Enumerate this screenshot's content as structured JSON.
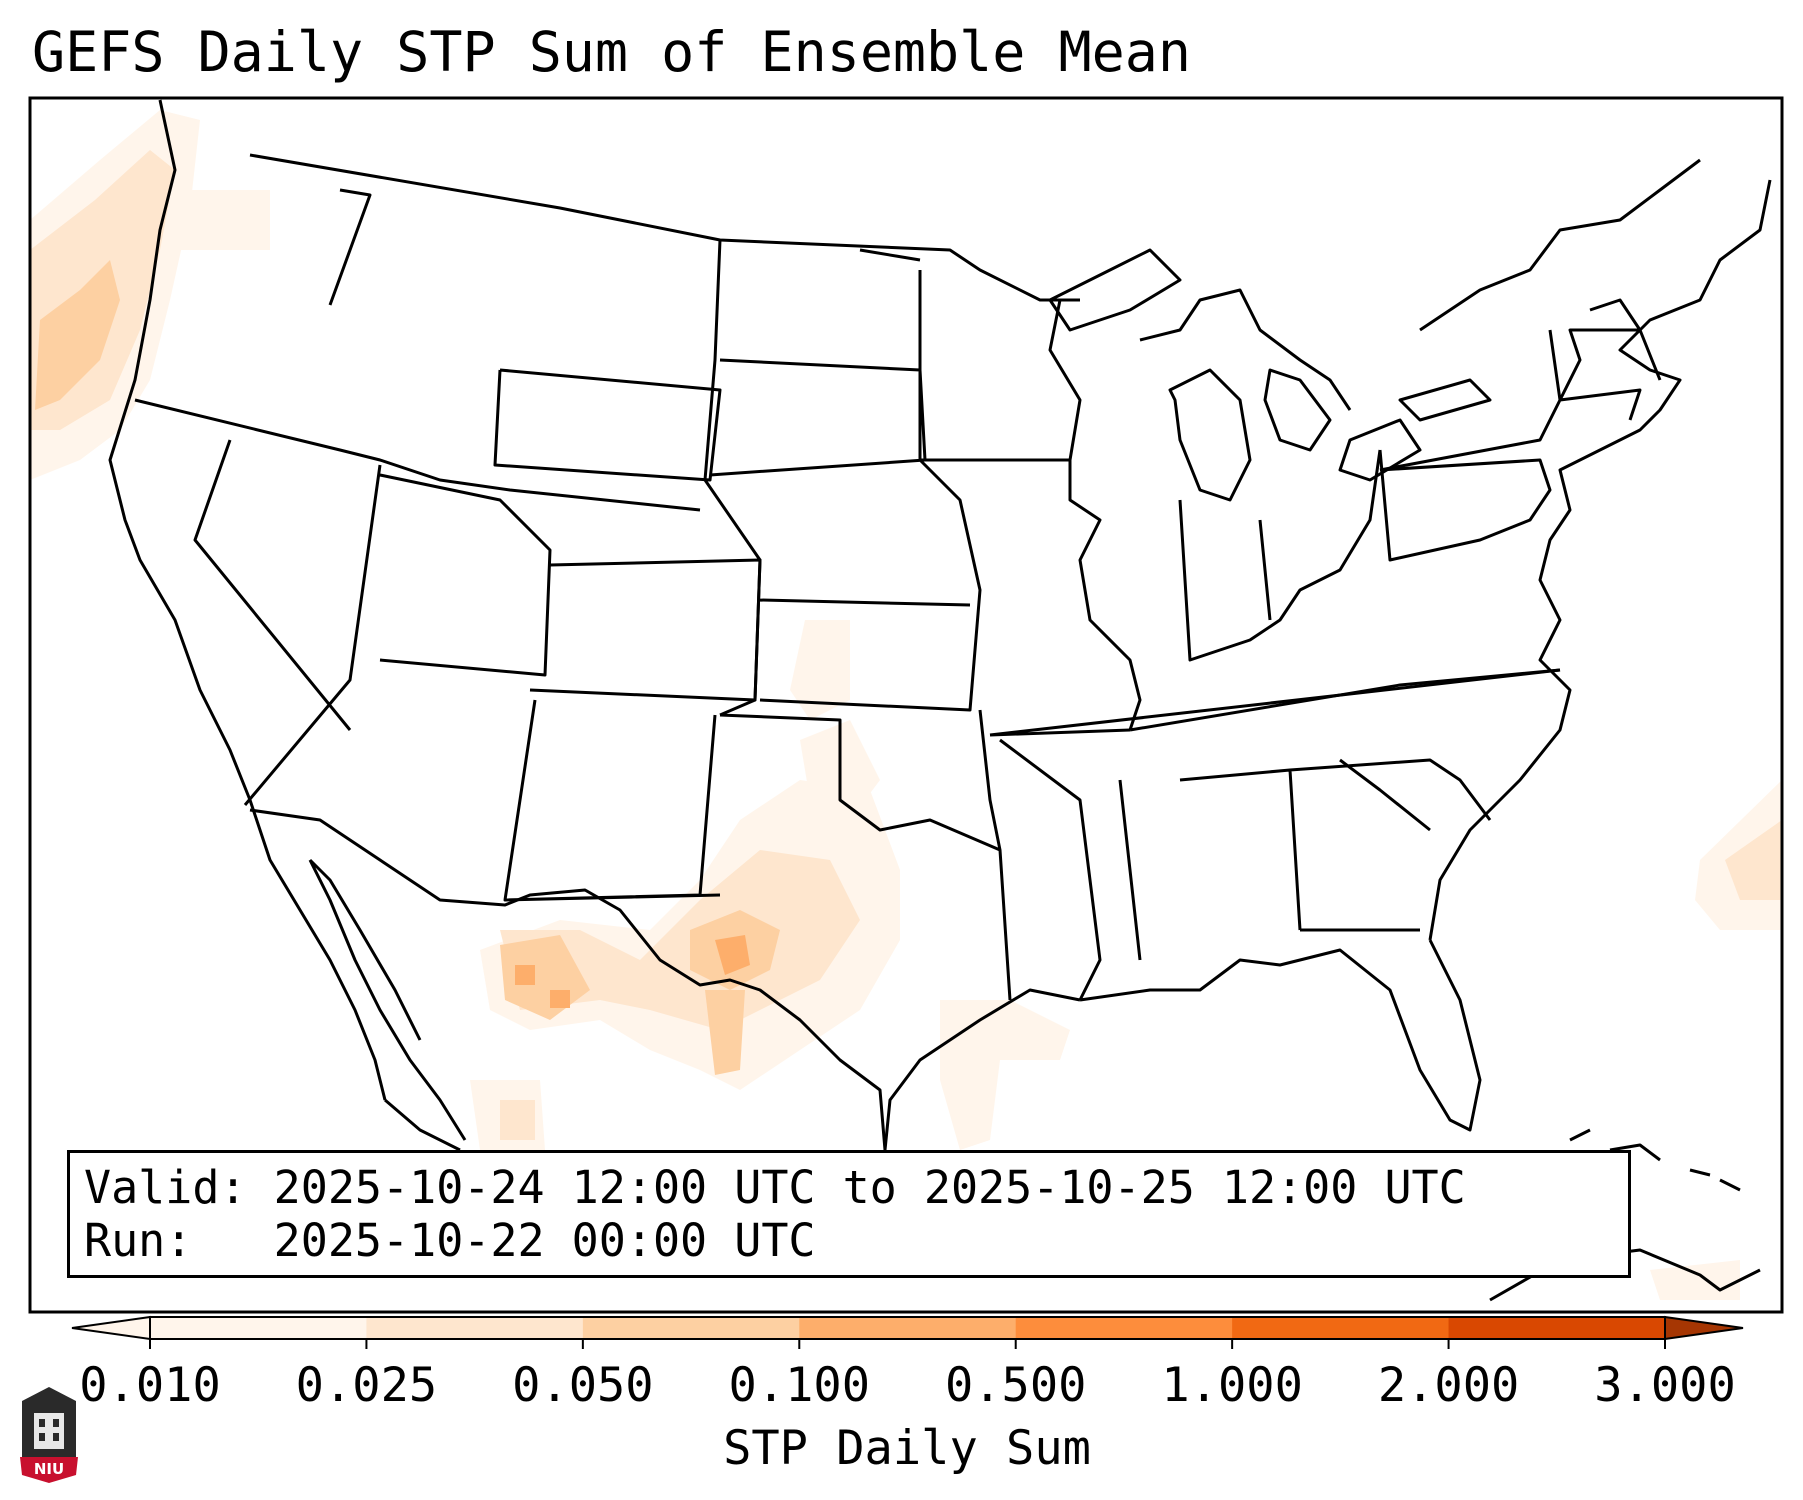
{
  "title": "GEFS Daily STP Sum of Ensemble Mean",
  "info": {
    "valid_label": "Valid:",
    "valid_value": "2025-10-24 12:00 UTC to 2025-10-25 12:00 UTC",
    "run_label": "Run:",
    "run_value": "2025-10-22 00:00 UTC"
  },
  "colorbar": {
    "label": "STP Daily Sum",
    "ticks": [
      "0.010",
      "0.025",
      "0.050",
      "0.100",
      "0.500",
      "1.000",
      "2.000",
      "3.000"
    ],
    "colors": [
      "#fff5eb",
      "#fee6ce",
      "#fdd0a2",
      "#fdae6b",
      "#fd8d3c",
      "#f16913",
      "#d94801",
      "#a63603"
    ]
  },
  "logo": {
    "text": "NIU",
    "color": "#c8102e"
  },
  "field_regions": [
    {
      "name": "pacific-northwest-coast",
      "level": 2
    },
    {
      "name": "west-texas-new-mexico",
      "level": 3
    },
    {
      "name": "chihuahua-mexico",
      "level": 3
    },
    {
      "name": "central-texas",
      "level": 2
    },
    {
      "name": "western-gulf",
      "level": 1
    },
    {
      "name": "western-atlantic",
      "level": 2
    },
    {
      "name": "north-caribbean",
      "level": 1
    }
  ]
}
